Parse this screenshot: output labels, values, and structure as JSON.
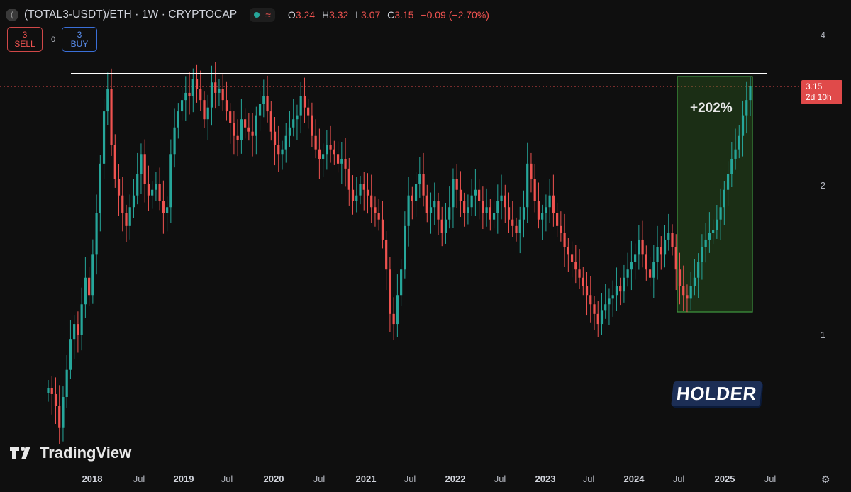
{
  "header": {
    "symbol": "(TOTAL3-USDT)/ETH · 1W · CRYPTOCAP",
    "ohlc": [
      {
        "k": "O",
        "v": "3.24"
      },
      {
        "k": "H",
        "v": "3.32"
      },
      {
        "k": "L",
        "v": "3.07"
      },
      {
        "k": "C",
        "v": "3.15"
      }
    ],
    "change": "−0.09 (−2.70%)"
  },
  "trade": {
    "sell_price": "3",
    "sell_label": "SELL",
    "spread": "0",
    "buy_price": "3",
    "buy_label": "BUY"
  },
  "price_label": {
    "price": "3.15",
    "countdown": "2d 10h"
  },
  "annotation": "+202%",
  "watermark": "HOLDER",
  "brand": "TradingView",
  "colors": {
    "up": "#26a69a",
    "down": "#ef5350",
    "bg": "#0f0f0f",
    "box": "#2f7d2f"
  },
  "chart_data": {
    "type": "candlestick",
    "scale": "log",
    "yticks": [
      "4",
      "2",
      "1"
    ],
    "xticks": [
      {
        "label": "2018",
        "year": true
      },
      {
        "label": "Jul",
        "year": false
      },
      {
        "label": "2019",
        "year": true
      },
      {
        "label": "Jul",
        "year": false
      },
      {
        "label": "2020",
        "year": true
      },
      {
        "label": "Jul",
        "year": false
      },
      {
        "label": "2021",
        "year": true
      },
      {
        "label": "Jul",
        "year": false
      },
      {
        "label": "2022",
        "year": true
      },
      {
        "label": "Jul",
        "year": false
      },
      {
        "label": "2023",
        "year": true
      },
      {
        "label": "Jul",
        "year": false
      },
      {
        "label": "2024",
        "year": true
      },
      {
        "label": "Jul",
        "year": false
      },
      {
        "label": "2025",
        "year": true
      },
      {
        "label": "Jul",
        "year": false
      }
    ],
    "x_start": "2017-07",
    "closes": [
      0.78,
      0.76,
      0.72,
      0.65,
      0.75,
      0.85,
      0.98,
      1.05,
      1.0,
      1.15,
      1.3,
      1.2,
      1.45,
      1.75,
      2.2,
      2.8,
      3.1,
      2.4,
      2.05,
      1.9,
      1.75,
      1.65,
      1.8,
      1.9,
      2.1,
      2.3,
      2.0,
      1.9,
      1.95,
      2.0,
      1.85,
      1.75,
      1.8,
      2.3,
      2.6,
      2.8,
      2.95,
      3.05,
      3.0,
      3.25,
      3.1,
      2.95,
      2.7,
      2.85,
      3.2,
      3.05,
      3.1,
      2.95,
      2.8,
      2.65,
      2.5,
      2.45,
      2.7,
      2.6,
      2.55,
      2.5,
      2.75,
      2.9,
      3.0,
      2.8,
      2.55,
      2.4,
      2.3,
      2.35,
      2.5,
      2.6,
      2.7,
      2.75,
      3.0,
      2.85,
      2.75,
      2.5,
      2.35,
      2.25,
      2.3,
      2.4,
      2.35,
      2.3,
      2.2,
      2.25,
      2.15,
      1.95,
      1.85,
      1.9,
      2.0,
      1.95,
      1.9,
      1.8,
      1.75,
      1.7,
      1.55,
      1.35,
      1.1,
      1.05,
      1.2,
      1.35,
      1.65,
      1.9,
      1.85,
      2.0,
      2.1,
      1.9,
      1.75,
      1.8,
      1.85,
      1.7,
      1.6,
      1.7,
      1.8,
      2.05,
      1.95,
      1.85,
      1.75,
      1.8,
      1.9,
      1.95,
      1.85,
      1.75,
      1.8,
      1.7,
      1.75,
      1.85,
      1.9,
      1.8,
      1.7,
      1.65,
      1.6,
      1.7,
      1.8,
      2.2,
      2.05,
      1.85,
      1.7,
      1.75,
      1.8,
      1.9,
      1.75,
      1.65,
      1.6,
      1.5,
      1.45,
      1.4,
      1.35,
      1.3,
      1.25,
      1.2,
      1.15,
      1.1,
      1.05,
      1.12,
      1.15,
      1.18,
      1.2,
      1.25,
      1.22,
      1.3,
      1.35,
      1.4,
      1.45,
      1.55,
      1.45,
      1.35,
      1.3,
      1.4,
      1.5,
      1.45,
      1.55,
      1.6,
      1.5,
      1.35,
      1.25,
      1.2,
      1.18,
      1.25,
      1.3,
      1.4,
      1.5,
      1.55,
      1.6,
      1.62,
      1.7,
      1.8,
      1.95,
      2.1,
      2.25,
      2.35,
      2.5,
      2.75,
      2.95,
      3.15
    ]
  }
}
